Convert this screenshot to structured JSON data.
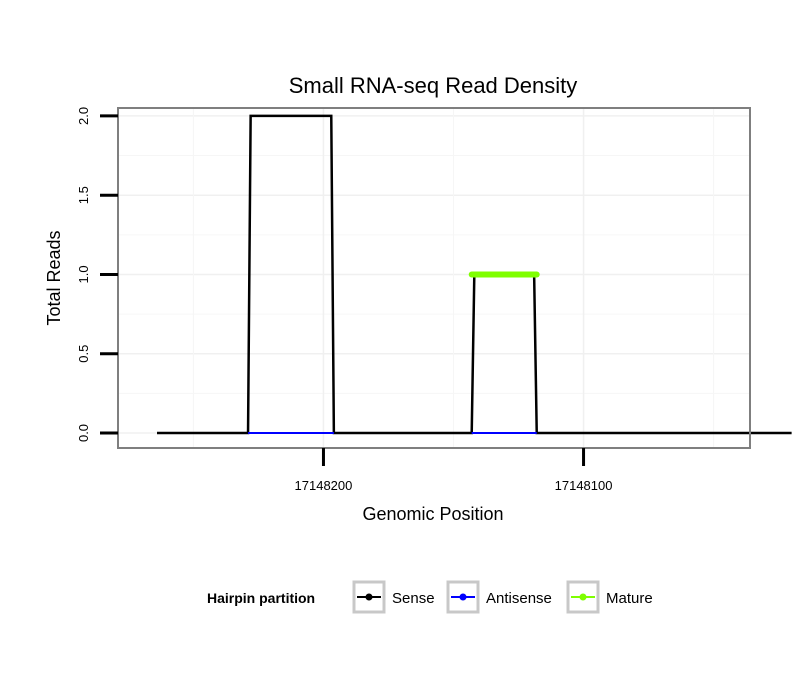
{
  "chart_data": {
    "type": "line",
    "title": "Small RNA-seq Read Density",
    "xlabel": "Genomic Position",
    "ylabel": "Total Reads",
    "x_reversed": true,
    "xlim": [
      17148036,
      17148279
    ],
    "ylim": [
      0,
      2.05
    ],
    "x_ticks": [
      {
        "value": 17148200,
        "label": "17148200"
      },
      {
        "value": 17148100,
        "label": "17148100"
      }
    ],
    "y_ticks": [
      {
        "value": 0,
        "label": "0.0"
      },
      {
        "value": 0.5,
        "label": "0.5"
      },
      {
        "value": 1,
        "label": "1.0"
      },
      {
        "value": 1.5,
        "label": "1.5"
      },
      {
        "value": 2,
        "label": "2.0"
      }
    ],
    "series": [
      {
        "name": "Sense",
        "color": "#000000",
        "x": [
          17148264,
          17148229,
          17148228,
          17148197,
          17148196,
          17148143,
          17148142,
          17148119,
          17148118,
          17148020
        ],
        "y": [
          0,
          0,
          2,
          2,
          0,
          0,
          1,
          1,
          0,
          0
        ]
      },
      {
        "name": "Antisense",
        "color": "#0000ff",
        "segments": [
          {
            "x": [
              17148229,
              17148196
            ],
            "y": [
              0,
              0
            ]
          },
          {
            "x": [
              17148143,
              17148118
            ],
            "y": [
              0,
              0
            ]
          }
        ]
      },
      {
        "name": "Mature",
        "color": "#7fff00",
        "segments": [
          {
            "x": [
              17148143,
              17148118
            ],
            "y": [
              1,
              1
            ]
          }
        ]
      }
    ],
    "legend": {
      "title": "Hairpin partition",
      "position": "bottom",
      "entries": [
        {
          "label": "Sense",
          "color": "#000000"
        },
        {
          "label": "Antisense",
          "color": "#0000ff"
        },
        {
          "label": "Mature",
          "color": "#7fff00"
        }
      ]
    }
  }
}
